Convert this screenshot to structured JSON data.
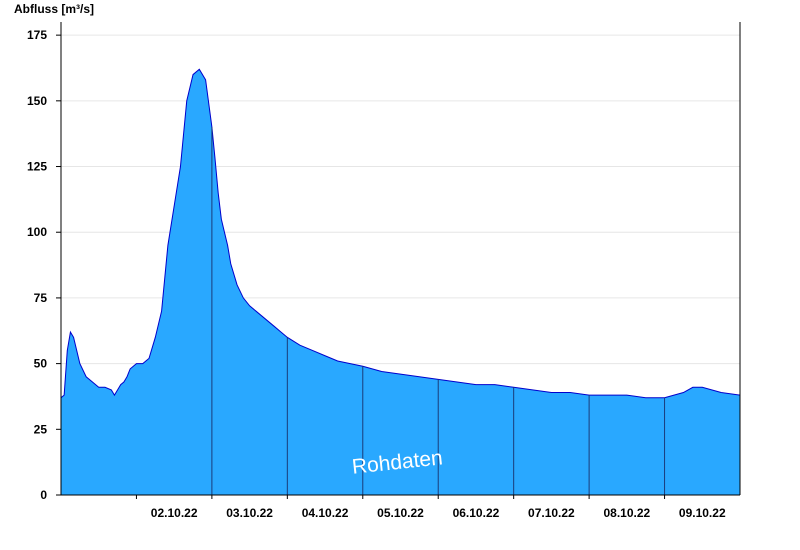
{
  "chart_data": {
    "type": "area",
    "ylabel": "Abfluss [m³/s]",
    "ylim": [
      0,
      180
    ],
    "yticks": [
      0,
      25,
      50,
      75,
      100,
      125,
      150,
      175
    ],
    "x_range": [
      "01.10.22 00:00",
      "09.10.22 24:00"
    ],
    "x_tick_labels": [
      "02.10.22",
      "03.10.22",
      "04.10.22",
      "05.10.22",
      "06.10.22",
      "07.10.22",
      "08.10.22",
      "09.10.22"
    ],
    "grid": true,
    "series": [
      {
        "x": [
          "01.10.22 00:00",
          "01.10.22 01:00",
          "01.10.22 02:00",
          "01.10.22 03:00",
          "01.10.22 04:00",
          "01.10.22 05:00",
          "01.10.22 06:00",
          "01.10.22 08:00",
          "01.10.22 10:00",
          "01.10.22 12:00",
          "01.10.22 14:00",
          "01.10.22 16:00",
          "01.10.22 17:00",
          "01.10.22 18:00",
          "01.10.22 19:00",
          "01.10.22 20:00",
          "01.10.22 21:00",
          "01.10.22 22:00",
          "02.10.22 00:00",
          "02.10.22 02:00",
          "02.10.22 04:00",
          "02.10.22 06:00",
          "02.10.22 08:00",
          "02.10.22 10:00",
          "02.10.22 12:00",
          "02.10.22 14:00",
          "02.10.22 16:00",
          "02.10.22 18:00",
          "02.10.22 20:00",
          "02.10.22 22:00",
          "03.10.22 00:00",
          "03.10.22 01:00",
          "03.10.22 02:00",
          "03.10.22 03:00",
          "03.10.22 04:00",
          "03.10.22 05:00",
          "03.10.22 06:00",
          "03.10.22 08:00",
          "03.10.22 10:00",
          "03.10.22 12:00",
          "03.10.22 14:00",
          "03.10.22 16:00",
          "03.10.22 18:00",
          "03.10.22 20:00",
          "03.10.22 22:00",
          "04.10.22 00:00",
          "04.10.22 04:00",
          "04.10.22 08:00",
          "04.10.22 12:00",
          "04.10.22 16:00",
          "04.10.22 20:00",
          "05.10.22 00:00",
          "05.10.22 06:00",
          "05.10.22 12:00",
          "05.10.22 18:00",
          "06.10.22 00:00",
          "06.10.22 06:00",
          "06.10.22 12:00",
          "06.10.22 18:00",
          "07.10.22 00:00",
          "07.10.22 06:00",
          "07.10.22 12:00",
          "07.10.22 18:00",
          "08.10.22 00:00",
          "08.10.22 06:00",
          "08.10.22 12:00",
          "08.10.22 18:00",
          "09.10.22 00:00",
          "09.10.22 03:00",
          "09.10.22 06:00",
          "09.10.22 09:00",
          "09.10.22 12:00",
          "09.10.22 18:00",
          "09.10.22 24:00"
        ],
        "y": [
          37,
          38,
          55,
          62,
          60,
          55,
          50,
          45,
          43,
          41,
          41,
          40,
          38,
          40,
          42,
          43,
          45,
          48,
          50,
          50,
          52,
          60,
          70,
          95,
          110,
          125,
          150,
          160,
          162,
          158,
          140,
          128,
          115,
          105,
          100,
          95,
          88,
          80,
          75,
          72,
          70,
          68,
          66,
          64,
          62,
          60,
          57,
          55,
          53,
          51,
          50,
          49,
          47,
          46,
          45,
          44,
          43,
          42,
          42,
          41,
          40,
          39,
          39,
          38,
          38,
          38,
          37,
          37,
          38,
          39,
          41,
          41,
          39,
          38
        ]
      }
    ],
    "fill_color": "#29a8ff",
    "line_color": "#0000cc",
    "day_separator_color": "#1a3b7a",
    "annotation": "Rohdaten"
  }
}
